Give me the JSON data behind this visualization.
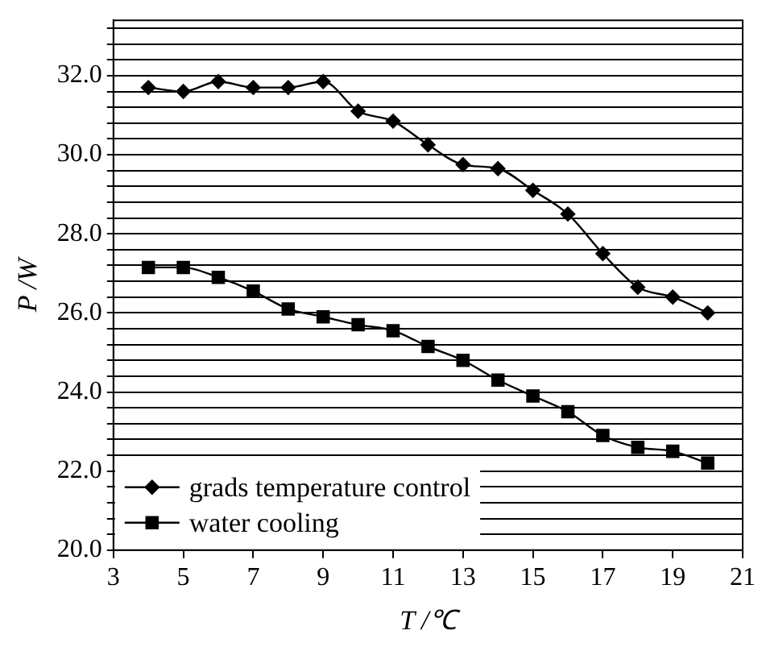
{
  "chart_data": {
    "type": "line",
    "xlabel": "T /℃",
    "ylabel": "P /W",
    "x": [
      4,
      5,
      6,
      7,
      8,
      9,
      10,
      11,
      12,
      13,
      14,
      15,
      16,
      17,
      18,
      19,
      20
    ],
    "series": [
      {
        "name": "grads temperature control",
        "color": "#000000",
        "marker": "diamond",
        "values": [
          31.7,
          31.6,
          31.85,
          31.7,
          31.7,
          31.85,
          31.1,
          30.85,
          30.25,
          29.75,
          29.65,
          29.1,
          28.5,
          27.5,
          26.65,
          26.4,
          26.0
        ]
      },
      {
        "name": "water cooling",
        "color": "#000000",
        "marker": "square",
        "values": [
          27.15,
          27.15,
          26.9,
          26.55,
          26.1,
          25.9,
          25.7,
          25.55,
          25.15,
          24.8,
          24.3,
          23.9,
          23.5,
          22.9,
          22.6,
          22.5,
          22.2
        ]
      }
    ],
    "xlim": [
      3,
      21
    ],
    "xticks": [
      3,
      5,
      7,
      9,
      11,
      13,
      15,
      17,
      19,
      21
    ],
    "ylim": [
      20,
      33.4
    ],
    "yticks": [
      {
        "value": 20,
        "label": "20.0"
      },
      {
        "value": 20.4,
        "label": null
      },
      {
        "value": 20.8,
        "label": null
      },
      {
        "value": 21.2,
        "label": null
      },
      {
        "value": 21.6,
        "label": null
      },
      {
        "value": 22,
        "label": "22.0"
      },
      {
        "value": 22.4,
        "label": null
      },
      {
        "value": 22.8,
        "label": null
      },
      {
        "value": 23.2,
        "label": null
      },
      {
        "value": 23.6,
        "label": null
      },
      {
        "value": 24,
        "label": "24.0"
      },
      {
        "value": 24.4,
        "label": null
      },
      {
        "value": 24.8,
        "label": null
      },
      {
        "value": 25.2,
        "label": null
      },
      {
        "value": 25.6,
        "label": null
      },
      {
        "value": 26,
        "label": "26.0"
      },
      {
        "value": 26.4,
        "label": null
      },
      {
        "value": 26.8,
        "label": null
      },
      {
        "value": 27.2,
        "label": null
      },
      {
        "value": 27.6,
        "label": null
      },
      {
        "value": 28,
        "label": "28.0"
      },
      {
        "value": 28.4,
        "label": null
      },
      {
        "value": 28.8,
        "label": null
      },
      {
        "value": 29.2,
        "label": null
      },
      {
        "value": 29.6,
        "label": null
      },
      {
        "value": 30,
        "label": "30.0"
      },
      {
        "value": 30.4,
        "label": null
      },
      {
        "value": 30.8,
        "label": null
      },
      {
        "value": 31.2,
        "label": null
      },
      {
        "value": 31.6,
        "label": null
      },
      {
        "value": 32,
        "label": "32.0"
      },
      {
        "value": 32.4,
        "label": null
      },
      {
        "value": 32.8,
        "label": null
      },
      {
        "value": 33.2,
        "label": null
      }
    ],
    "grid": "y",
    "legend": "bottom left",
    "line_style": "solid"
  }
}
